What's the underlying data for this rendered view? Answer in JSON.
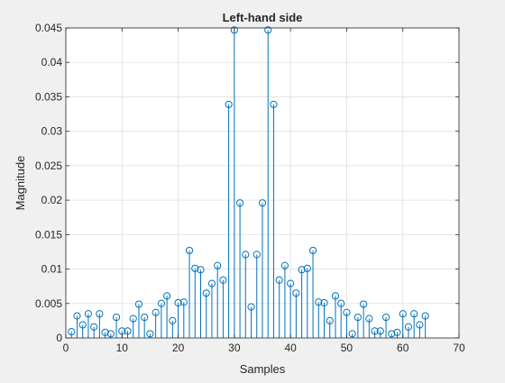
{
  "chart_data": {
    "type": "stem",
    "title": "Left-hand side",
    "xlabel": "Samples",
    "ylabel": "Magnitude",
    "xlim": [
      0,
      70
    ],
    "ylim": [
      0,
      0.045
    ],
    "xticks": [
      0,
      10,
      20,
      30,
      40,
      50,
      60,
      70
    ],
    "yticks": [
      0,
      0.005,
      0.01,
      0.015,
      0.02,
      0.025,
      0.03,
      0.035,
      0.04,
      0.045
    ],
    "xtick_labels": [
      "0",
      "10",
      "20",
      "30",
      "40",
      "50",
      "60",
      "70"
    ],
    "ytick_labels": [
      "0",
      "0.005",
      "0.01",
      "0.015",
      "0.02",
      "0.025",
      "0.03",
      "0.035",
      "0.04",
      "0.045"
    ],
    "grid": true,
    "colors": {
      "series": "#0072BD",
      "grid": "#dfdfdf",
      "axes": "#262626",
      "plot_bg": "#ffffff",
      "figure_bg": "#f0f0f0"
    },
    "series": [
      {
        "x": [
          1,
          2,
          3,
          4,
          5,
          6,
          7,
          8,
          9,
          10,
          11,
          12,
          13,
          14,
          15,
          16,
          17,
          18,
          19,
          20,
          21,
          22,
          23,
          24,
          25,
          26,
          27,
          28,
          29,
          30,
          31,
          32,
          33,
          34,
          35,
          36,
          37,
          38,
          39,
          40,
          41,
          42,
          43,
          44,
          45,
          46,
          47,
          48,
          49,
          50,
          51,
          52,
          53,
          54,
          55,
          56,
          57,
          58,
          59,
          60,
          61,
          62,
          63,
          64
        ],
        "values": [
          0.0009,
          0.0032,
          0.0019,
          0.0035,
          0.0016,
          0.0035,
          0.0008,
          0.0006,
          0.003,
          0.001,
          0.001,
          0.0028,
          0.0049,
          0.003,
          0.0006,
          0.0037,
          0.005,
          0.0061,
          0.0025,
          0.0051,
          0.0052,
          0.0127,
          0.0101,
          0.0099,
          0.0065,
          0.0079,
          0.0105,
          0.0084,
          0.0339,
          0.0447,
          0.0196,
          0.0121,
          0.0045,
          0.0121,
          0.0196,
          0.0447,
          0.0339,
          0.0084,
          0.0105,
          0.0079,
          0.0065,
          0.0099,
          0.0101,
          0.0127,
          0.0052,
          0.0051,
          0.0025,
          0.0061,
          0.005,
          0.0037,
          0.0006,
          0.003,
          0.0049,
          0.0028,
          0.001,
          0.001,
          0.003,
          0.0006,
          0.0008,
          0.0035,
          0.0016,
          0.0035,
          0.0019,
          0.0032
        ]
      }
    ]
  }
}
